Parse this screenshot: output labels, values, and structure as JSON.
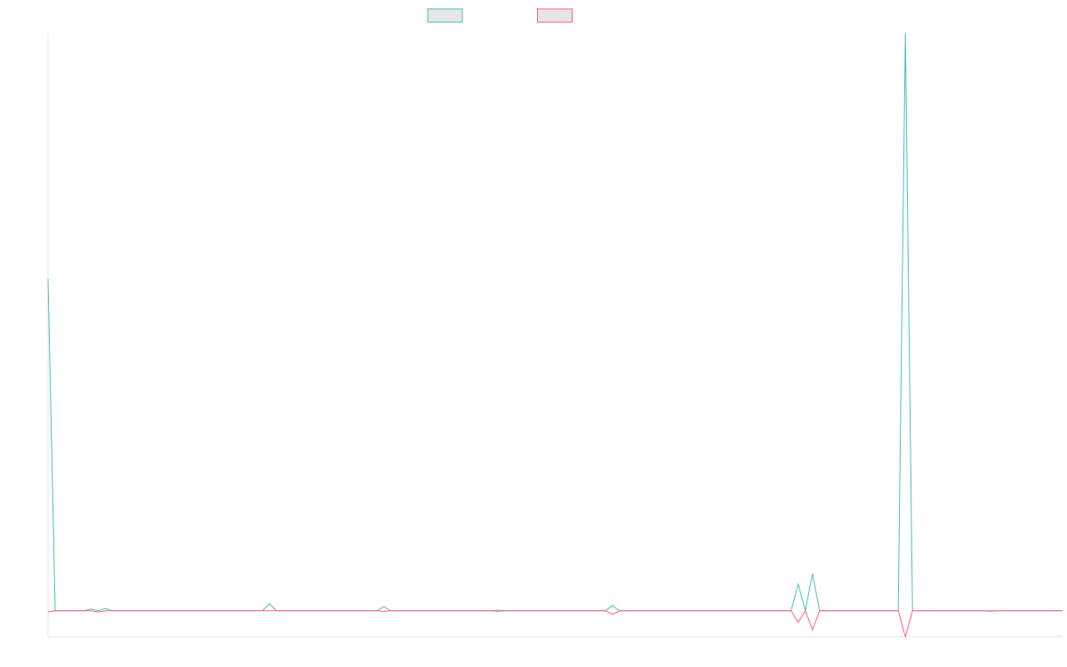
{
  "chart_data": {
    "type": "line",
    "legend": "top",
    "categories": [
      null,
      null,
      null,
      null,
      null,
      null,
      null,
      null,
      null,
      null,
      null,
      null,
      null,
      null,
      null,
      null,
      null,
      null,
      null,
      null,
      null,
      null,
      null,
      null,
      null,
      null,
      null,
      null,
      null,
      null,
      null,
      null,
      null,
      null,
      null,
      null,
      null,
      null,
      null,
      null,
      null,
      null,
      null,
      null,
      null,
      null,
      null,
      null,
      null,
      null,
      null,
      null,
      null,
      null,
      null,
      null,
      null,
      null,
      null,
      null,
      null,
      null,
      null,
      null,
      null,
      null,
      null,
      null,
      null,
      null,
      null,
      null,
      null,
      null,
      null,
      null,
      null,
      null,
      null,
      null,
      null,
      null,
      null,
      null,
      null,
      null,
      null,
      null,
      null,
      null,
      null,
      null,
      null,
      null,
      null,
      null,
      null,
      null,
      null,
      null,
      null,
      null,
      null,
      null,
      null,
      null,
      null,
      null,
      null,
      null,
      null,
      null,
      null,
      null,
      null,
      null,
      null,
      null,
      null,
      null,
      null,
      null,
      null,
      null,
      null,
      null,
      null,
      null,
      null,
      null,
      null,
      null,
      null,
      null,
      null,
      null,
      null,
      null,
      null,
      null,
      null,
      null,
      null
    ],
    "series": [
      {
        "color": "#4bc0c0",
        "values": [
          575,
          0,
          0,
          0,
          0,
          0,
          3,
          0,
          4,
          0,
          0,
          0,
          0,
          0,
          0,
          0,
          0,
          0,
          0,
          0,
          0,
          0,
          0,
          0,
          0,
          0,
          0,
          0,
          0,
          0,
          0,
          12,
          0,
          0,
          0,
          0,
          0,
          0,
          0,
          0,
          0,
          0,
          0,
          0,
          0,
          0,
          0,
          7,
          0,
          0,
          0,
          0,
          0,
          0,
          0,
          0,
          0,
          0,
          0,
          0,
          0,
          0,
          0,
          1,
          0,
          0,
          0,
          0,
          0,
          0,
          0,
          0,
          0,
          0,
          0,
          0,
          0,
          0,
          0,
          9,
          0,
          0,
          0,
          0,
          0,
          0,
          0,
          0,
          0,
          0,
          0,
          0,
          0,
          0,
          0,
          0,
          0,
          0,
          0,
          0,
          0,
          0,
          0,
          0,
          0,
          46,
          0,
          64,
          0,
          0,
          0,
          0,
          0,
          0,
          0,
          0,
          0,
          0,
          0,
          0,
          1000,
          0,
          0,
          0,
          0,
          0,
          0,
          0,
          0,
          0,
          0,
          0,
          0,
          0,
          0,
          0,
          0,
          0,
          0,
          0,
          0,
          0,
          0
        ]
      },
      {
        "color": "#ff6384",
        "values": [
          -2,
          0,
          0,
          0,
          0,
          0,
          0,
          -2,
          0,
          0,
          0,
          0,
          0,
          0,
          0,
          0,
          0,
          0,
          0,
          0,
          0,
          0,
          0,
          0,
          0,
          0,
          0,
          0,
          0,
          0,
          0,
          0,
          0,
          0,
          0,
          0,
          0,
          0,
          0,
          0,
          0,
          0,
          0,
          0,
          0,
          0,
          0,
          -1,
          0,
          0,
          0,
          0,
          0,
          0,
          0,
          0,
          0,
          0,
          0,
          0,
          0,
          0,
          0,
          -1,
          0,
          0,
          0,
          0,
          0,
          0,
          0,
          0,
          0,
          0,
          0,
          0,
          0,
          0,
          0,
          -6,
          0,
          0,
          0,
          0,
          0,
          0,
          0,
          0,
          0,
          0,
          0,
          0,
          0,
          0,
          0,
          0,
          0,
          0,
          0,
          0,
          0,
          0,
          0,
          0,
          0,
          -20,
          0,
          -33,
          0,
          0,
          0,
          0,
          0,
          0,
          0,
          0,
          0,
          0,
          0,
          0,
          -45,
          0,
          0,
          0,
          0,
          0,
          0,
          0,
          0,
          0,
          0,
          0,
          -1,
          0,
          0,
          0,
          0,
          0,
          0,
          0,
          0,
          0,
          0
        ]
      }
    ],
    "ylim": [
      -45,
      1000
    ]
  }
}
